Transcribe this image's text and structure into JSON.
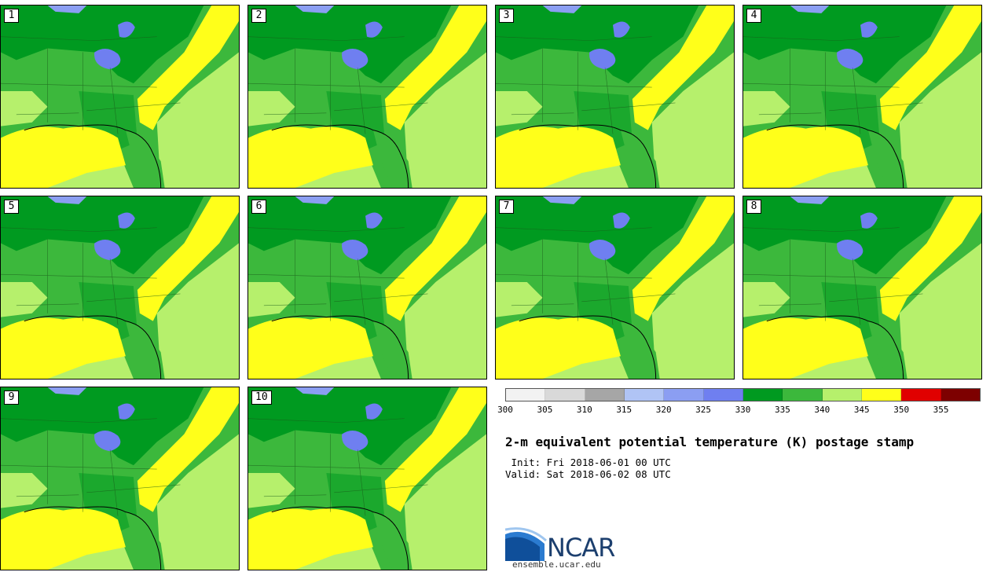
{
  "panels": [
    {
      "label": "1"
    },
    {
      "label": "2"
    },
    {
      "label": "3"
    },
    {
      "label": "4"
    },
    {
      "label": "5"
    },
    {
      "label": "6"
    },
    {
      "label": "7"
    },
    {
      "label": "8"
    },
    {
      "label": "9"
    },
    {
      "label": "10"
    }
  ],
  "colorbar": {
    "colors": [
      "#f2f2f2",
      "#d9d9d9",
      "#a6a6a6",
      "#b0c4f5",
      "#8b9ef2",
      "#6f7ff0",
      "#009a20",
      "#3cb83c",
      "#b6f06c",
      "#ffff1a",
      "#e00000",
      "#7d0000"
    ],
    "ticks": [
      "300",
      "305",
      "310",
      "315",
      "320",
      "325",
      "330",
      "335",
      "340",
      "345",
      "350",
      "355"
    ]
  },
  "title": "2-m equivalent potential temperature (K) postage stamp",
  "init": " Init: Fri 2018-06-01 00 UTC",
  "valid": "Valid: Sat 2018-06-02 08 UTC",
  "logo": {
    "text": "NCAR",
    "url": "ensemble.ucar.edu"
  }
}
